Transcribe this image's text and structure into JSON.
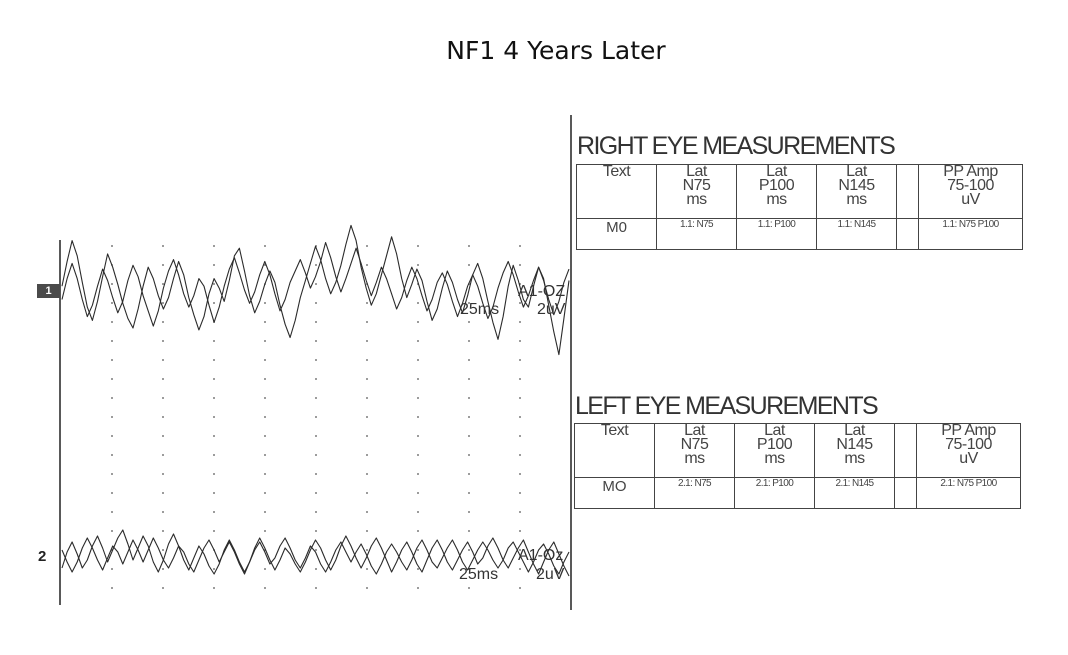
{
  "title": "NF1 4 Years Later",
  "colors": {
    "trace": "#2b2b2b",
    "grid_dot": "#555555",
    "table_border": "#444444"
  },
  "traces": [
    {
      "number": "1",
      "channel_label": "A1-OZ",
      "time_scale": "25ms",
      "amplitude_scale": "2uV"
    },
    {
      "number": "2",
      "channel_label": "A1-Oz",
      "time_scale": "25ms",
      "amplitude_scale": "2uV"
    }
  ],
  "right_eye": {
    "title": "RIGHT EYE MEASUREMENTS",
    "headers": [
      [
        "Text"
      ],
      [
        "Lat",
        "N75",
        "ms"
      ],
      [
        "Lat",
        "P100",
        "ms"
      ],
      [
        "Lat",
        "N145",
        "ms"
      ],
      [
        ""
      ],
      [
        "PP Amp",
        "75-100",
        "uV"
      ]
    ],
    "row": {
      "label": "M0",
      "cells": [
        "1.1: N75",
        "1.1: P100",
        "1.1: N145",
        "",
        "1.1: N75 P100"
      ]
    }
  },
  "left_eye": {
    "title": "LEFT EYE MEASUREMENTS",
    "headers": [
      [
        "Text"
      ],
      [
        "Lat",
        "N75",
        "ms"
      ],
      [
        "Lat",
        "P100",
        "ms"
      ],
      [
        "Lat",
        "N145",
        "ms"
      ],
      [
        ""
      ],
      [
        "PP Amp",
        "75-100",
        "uV"
      ]
    ],
    "row": {
      "label": "MO",
      "cells": [
        "2.1: N75",
        "2.1: P100",
        "2.1: N145",
        "",
        "2.1: N75 P100"
      ]
    }
  },
  "chart_data": {
    "type": "line",
    "title": "NF1 4 Years Later",
    "grid": true,
    "traces": [
      {
        "name": "1",
        "label": "A1-OZ",
        "scale_x": "25ms",
        "scale_y": "2uV",
        "sweeps": [
          [
            0.2,
            1.5,
            2.6,
            1.8,
            0.4,
            -0.9,
            -1.6,
            -0.6,
            0.7,
            1.9,
            1.2,
            0.3,
            -0.7,
            -1.5,
            -2.0,
            -1.0,
            0.2,
            1.2,
            0.6,
            -0.3,
            -1.0,
            -0.4,
            0.6,
            1.5,
            0.8,
            -0.4,
            -1.3,
            -2.1,
            -1.4,
            -0.2,
            0.6,
            0.1,
            -0.6,
            0.5,
            1.8,
            2.2,
            1.0,
            -0.3,
            -1.2,
            -0.6,
            0.3,
            1.0,
            0.4,
            -0.8,
            -1.8,
            -2.5,
            -1.6,
            -0.4,
            0.5,
            1.4,
            2.3,
            1.6,
            0.6,
            -0.2,
            0.4,
            1.3,
            2.4,
            3.4,
            2.6,
            1.2,
            0.1,
            -0.8,
            -0.2,
            0.8,
            1.8,
            2.8,
            1.9,
            0.6,
            -0.4,
            0.3,
            1.1,
            0.5,
            -0.6,
            -1.6,
            -1.0,
            0.1,
            1.0,
            0.4,
            -0.5,
            -1.2,
            -0.3,
            0.8,
            1.4,
            0.6,
            -0.6,
            -1.7,
            -2.6,
            -1.4,
            0.2,
            1.3,
            0.5,
            -0.5,
            -0.9,
            0.2,
            1.2,
            0.6,
            -0.8,
            -2.2,
            -3.4,
            -1.5,
            0.5
          ],
          [
            -0.5,
            0.6,
            1.4,
            0.6,
            -0.5,
            -1.4,
            -0.8,
            0.2,
            1.1,
            0.5,
            -0.4,
            -1.2,
            -0.6,
            0.5,
            1.3,
            0.7,
            -0.3,
            -1.1,
            -1.9,
            -1.1,
            0.1,
            1.0,
            1.6,
            0.8,
            -0.2,
            -0.9,
            -0.3,
            0.6,
            0.2,
            -0.8,
            -1.7,
            -0.9,
            0.2,
            1.1,
            1.7,
            0.9,
            0.0,
            -0.7,
            -0.1,
            0.8,
            1.5,
            0.8,
            -0.2,
            -1.1,
            -0.5,
            0.4,
            1.0,
            1.6,
            0.9,
            0.1,
            0.7,
            1.5,
            2.5,
            1.7,
            0.7,
            -0.1,
            0.6,
            1.4,
            2.2,
            1.4,
            0.5,
            -0.3,
            0.4,
            1.2,
            0.6,
            -0.2,
            -1.0,
            -0.4,
            0.5,
            1.2,
            0.6,
            -0.3,
            -1.1,
            -0.5,
            0.4,
            0.9,
            0.3,
            -0.6,
            -1.4,
            -0.7,
            0.2,
            0.8,
            0.2,
            -0.7,
            -1.5,
            -0.9,
            0.1,
            0.9,
            1.5,
            0.8,
            -0.1,
            -0.9,
            -0.3,
            0.5,
            1.2,
            0.5,
            -0.5,
            -1.3,
            -0.6,
            0.4,
            1.1
          ]
        ]
      },
      {
        "name": "2",
        "label": "A1-Oz",
        "scale_x": "25ms",
        "scale_y": "2uV",
        "sweeps": [
          [
            -0.6,
            0.2,
            0.7,
            0.1,
            -0.6,
            -0.2,
            0.5,
            1.0,
            0.4,
            -0.3,
            0.3,
            0.9,
            1.3,
            0.6,
            -0.2,
            0.4,
            1.0,
            0.5,
            -0.3,
            -0.8,
            -0.2,
            0.6,
            1.1,
            0.5,
            -0.2,
            -0.7,
            -0.1,
            0.5,
            0.1,
            -0.5,
            -0.9,
            -0.4,
            0.3,
            0.8,
            0.3,
            -0.3,
            -0.8,
            -0.3,
            0.4,
            0.9,
            0.4,
            -0.2,
            -0.7,
            -0.2,
            0.4,
            0.1,
            -0.4,
            -0.8,
            -0.3,
            0.3,
            0.8,
            0.4,
            -0.2,
            -0.7,
            -0.2,
            0.5,
            1.0,
            0.5,
            -0.1,
            -0.6,
            -0.1,
            0.5,
            0.9,
            0.4,
            -0.2,
            -0.8,
            -0.3,
            0.3,
            0.7,
            0.2,
            -0.4,
            -0.8,
            -0.2,
            0.4,
            0.8,
            0.3,
            -0.3,
            -0.7,
            -0.2,
            0.3,
            0.7,
            0.2,
            -0.4,
            -0.1,
            0.5,
            0.9,
            0.4,
            -0.2,
            -0.6,
            -0.1,
            0.4,
            0.8,
            0.2,
            -0.4,
            -0.9,
            -0.3,
            0.3,
            0.7,
            0.1,
            -0.5,
            -1.0
          ],
          [
            0.3,
            -0.3,
            -0.8,
            -0.3,
            0.4,
            0.9,
            0.4,
            -0.2,
            -0.7,
            -0.1,
            0.5,
            0.2,
            -0.4,
            0.2,
            0.8,
            0.3,
            -0.3,
            0.3,
            0.9,
            0.4,
            -0.2,
            -0.6,
            -0.1,
            0.5,
            0.2,
            -0.4,
            -0.8,
            -0.2,
            0.4,
            0.8,
            0.3,
            -0.3,
            0.2,
            0.7,
            0.2,
            -0.4,
            -0.9,
            -0.3,
            0.3,
            0.7,
            0.2,
            -0.4,
            -0.1,
            0.5,
            0.9,
            0.4,
            -0.2,
            -0.6,
            -0.1,
            0.5,
            0.2,
            -0.4,
            -0.8,
            -0.3,
            0.3,
            0.7,
            0.2,
            -0.3,
            0.2,
            0.6,
            0.1,
            -0.5,
            -0.9,
            -0.4,
            0.2,
            0.6,
            0.2,
            -0.3,
            -0.7,
            -0.2,
            0.4,
            0.8,
            0.3,
            -0.3,
            -0.6,
            -0.1,
            0.4,
            0.8,
            0.3,
            -0.3,
            -0.7,
            -0.2,
            0.3,
            0.7,
            0.3,
            -0.2,
            -0.6,
            -0.2,
            0.4,
            0.7,
            0.2,
            -0.3,
            -0.8,
            -0.3,
            0.3,
            0.6,
            0.1,
            -0.5,
            -0.9,
            -0.3,
            0.2
          ]
        ]
      }
    ]
  }
}
